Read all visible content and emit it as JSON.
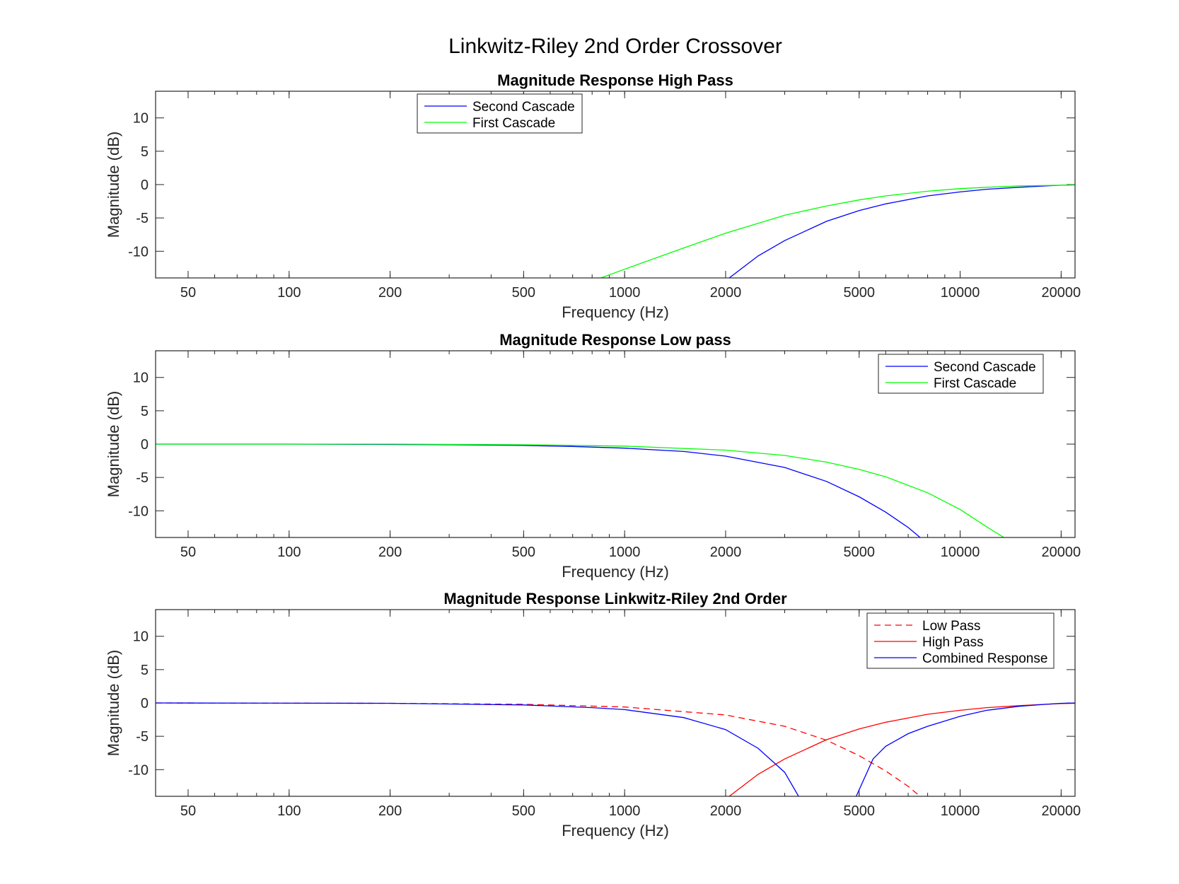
{
  "figure": {
    "title": "Linkwitz-Riley 2nd Order Crossover"
  },
  "colors": {
    "blue": "#0000ff",
    "green": "#00ff00",
    "red": "#ff0000",
    "axis": "#262626"
  },
  "chart_data": [
    {
      "type": "line",
      "title": "Magnitude Response High Pass",
      "xlabel": "Frequency (Hz)",
      "ylabel": "Magnitude (dB)",
      "xscale": "log",
      "xlim": [
        40,
        22000
      ],
      "ylim": [
        -14,
        14
      ],
      "xticks": [
        50,
        100,
        200,
        500,
        1000,
        2000,
        5000,
        10000,
        20000
      ],
      "yticks": [
        -10,
        -5,
        0,
        5,
        10
      ],
      "legend": {
        "position": "top-left",
        "entries": [
          "Second Cascade",
          "First Cascade"
        ]
      },
      "series": [
        {
          "name": "Second Cascade",
          "color": "#0000ff",
          "dash": "solid",
          "x": [
            2050,
            2500,
            3000,
            4000,
            5000,
            6000,
            8000,
            10000,
            12000,
            15000,
            18000,
            20000,
            22000
          ],
          "y": [
            -14,
            -10.7,
            -8.4,
            -5.5,
            -3.9,
            -2.9,
            -1.7,
            -1.1,
            -0.7,
            -0.4,
            -0.2,
            -0.1,
            -0.05
          ]
        },
        {
          "name": "First Cascade",
          "color": "#00ff00",
          "dash": "solid",
          "x": [
            850,
            1000,
            1500,
            2000,
            3000,
            4000,
            5000,
            6000,
            8000,
            10000,
            12000,
            15000,
            20000,
            22000
          ],
          "y": [
            -14,
            -12.7,
            -9.5,
            -7.3,
            -4.6,
            -3.2,
            -2.3,
            -1.7,
            -1.0,
            -0.6,
            -0.4,
            -0.2,
            -0.1,
            -0.05
          ]
        }
      ]
    },
    {
      "type": "line",
      "title": "Magnitude Response Low pass",
      "xlabel": "Frequency (Hz)",
      "ylabel": "Magnitude (dB)",
      "xscale": "log",
      "xlim": [
        40,
        22000
      ],
      "ylim": [
        -14,
        14
      ],
      "xticks": [
        50,
        100,
        200,
        500,
        1000,
        2000,
        5000,
        10000,
        20000
      ],
      "yticks": [
        -10,
        -5,
        0,
        5,
        10
      ],
      "legend": {
        "position": "top-right",
        "entries": [
          "Second Cascade",
          "First Cascade"
        ]
      },
      "series": [
        {
          "name": "Second Cascade",
          "color": "#0000ff",
          "dash": "solid",
          "x": [
            40,
            100,
            200,
            300,
            500,
            700,
            1000,
            1500,
            2000,
            3000,
            4000,
            5000,
            6000,
            7000,
            7600
          ],
          "y": [
            0,
            0,
            -0.05,
            -0.1,
            -0.2,
            -0.35,
            -0.6,
            -1.1,
            -1.8,
            -3.5,
            -5.6,
            -7.9,
            -10.2,
            -12.5,
            -14
          ]
        },
        {
          "name": "First Cascade",
          "color": "#00ff00",
          "dash": "solid",
          "x": [
            40,
            200,
            500,
            1000,
            2000,
            3000,
            4000,
            5000,
            6000,
            8000,
            10000,
            12000,
            13500
          ],
          "y": [
            0,
            0,
            -0.1,
            -0.3,
            -0.9,
            -1.7,
            -2.7,
            -3.8,
            -4.9,
            -7.3,
            -9.8,
            -12.4,
            -14
          ]
        }
      ]
    },
    {
      "type": "line",
      "title": "Magnitude Response Linkwitz-Riley 2nd Order",
      "xlabel": "Frequency (Hz)",
      "ylabel": "Magnitude (dB)",
      "xscale": "log",
      "xlim": [
        40,
        22000
      ],
      "ylim": [
        -14,
        14
      ],
      "xticks": [
        50,
        100,
        200,
        500,
        1000,
        2000,
        5000,
        10000,
        20000
      ],
      "yticks": [
        -10,
        -5,
        0,
        5,
        10
      ],
      "legend": {
        "position": "top-right",
        "entries": [
          "Low Pass",
          "High Pass",
          "Combined Response"
        ]
      },
      "series": [
        {
          "name": "Low Pass",
          "color": "#ff0000",
          "dash": "dashed",
          "x": [
            40,
            200,
            500,
            1000,
            2000,
            3000,
            4000,
            5000,
            6000,
            7000,
            7600
          ],
          "y": [
            0,
            -0.05,
            -0.2,
            -0.6,
            -1.8,
            -3.5,
            -5.6,
            -7.9,
            -10.2,
            -12.5,
            -14
          ]
        },
        {
          "name": "High Pass",
          "color": "#ff0000",
          "dash": "solid",
          "x": [
            2050,
            2500,
            3000,
            4000,
            5000,
            6000,
            8000,
            10000,
            12000,
            15000,
            18000,
            20000,
            22000
          ],
          "y": [
            -14,
            -10.7,
            -8.4,
            -5.5,
            -3.9,
            -2.9,
            -1.7,
            -1.1,
            -0.7,
            -0.4,
            -0.2,
            -0.1,
            -0.05
          ]
        },
        {
          "name": "Combined Response",
          "color": "#0000ff",
          "dash": "solid",
          "x": [
            40,
            200,
            500,
            800,
            1000,
            1500,
            2000,
            2500,
            3000,
            3300
          ],
          "y": [
            0,
            -0.05,
            -0.3,
            -0.7,
            -1.0,
            -2.2,
            -4.0,
            -6.8,
            -10.4,
            -14
          ]
        },
        {
          "name": "Combined Response",
          "color": "#0000ff",
          "dash": "solid",
          "x": [
            4900,
            5500,
            6000,
            7000,
            8000,
            10000,
            12000,
            15000,
            18000,
            20000,
            22000
          ],
          "y": [
            -14,
            -8.4,
            -6.5,
            -4.6,
            -3.5,
            -2.0,
            -1.1,
            -0.5,
            -0.2,
            -0.05,
            0
          ]
        }
      ]
    }
  ]
}
